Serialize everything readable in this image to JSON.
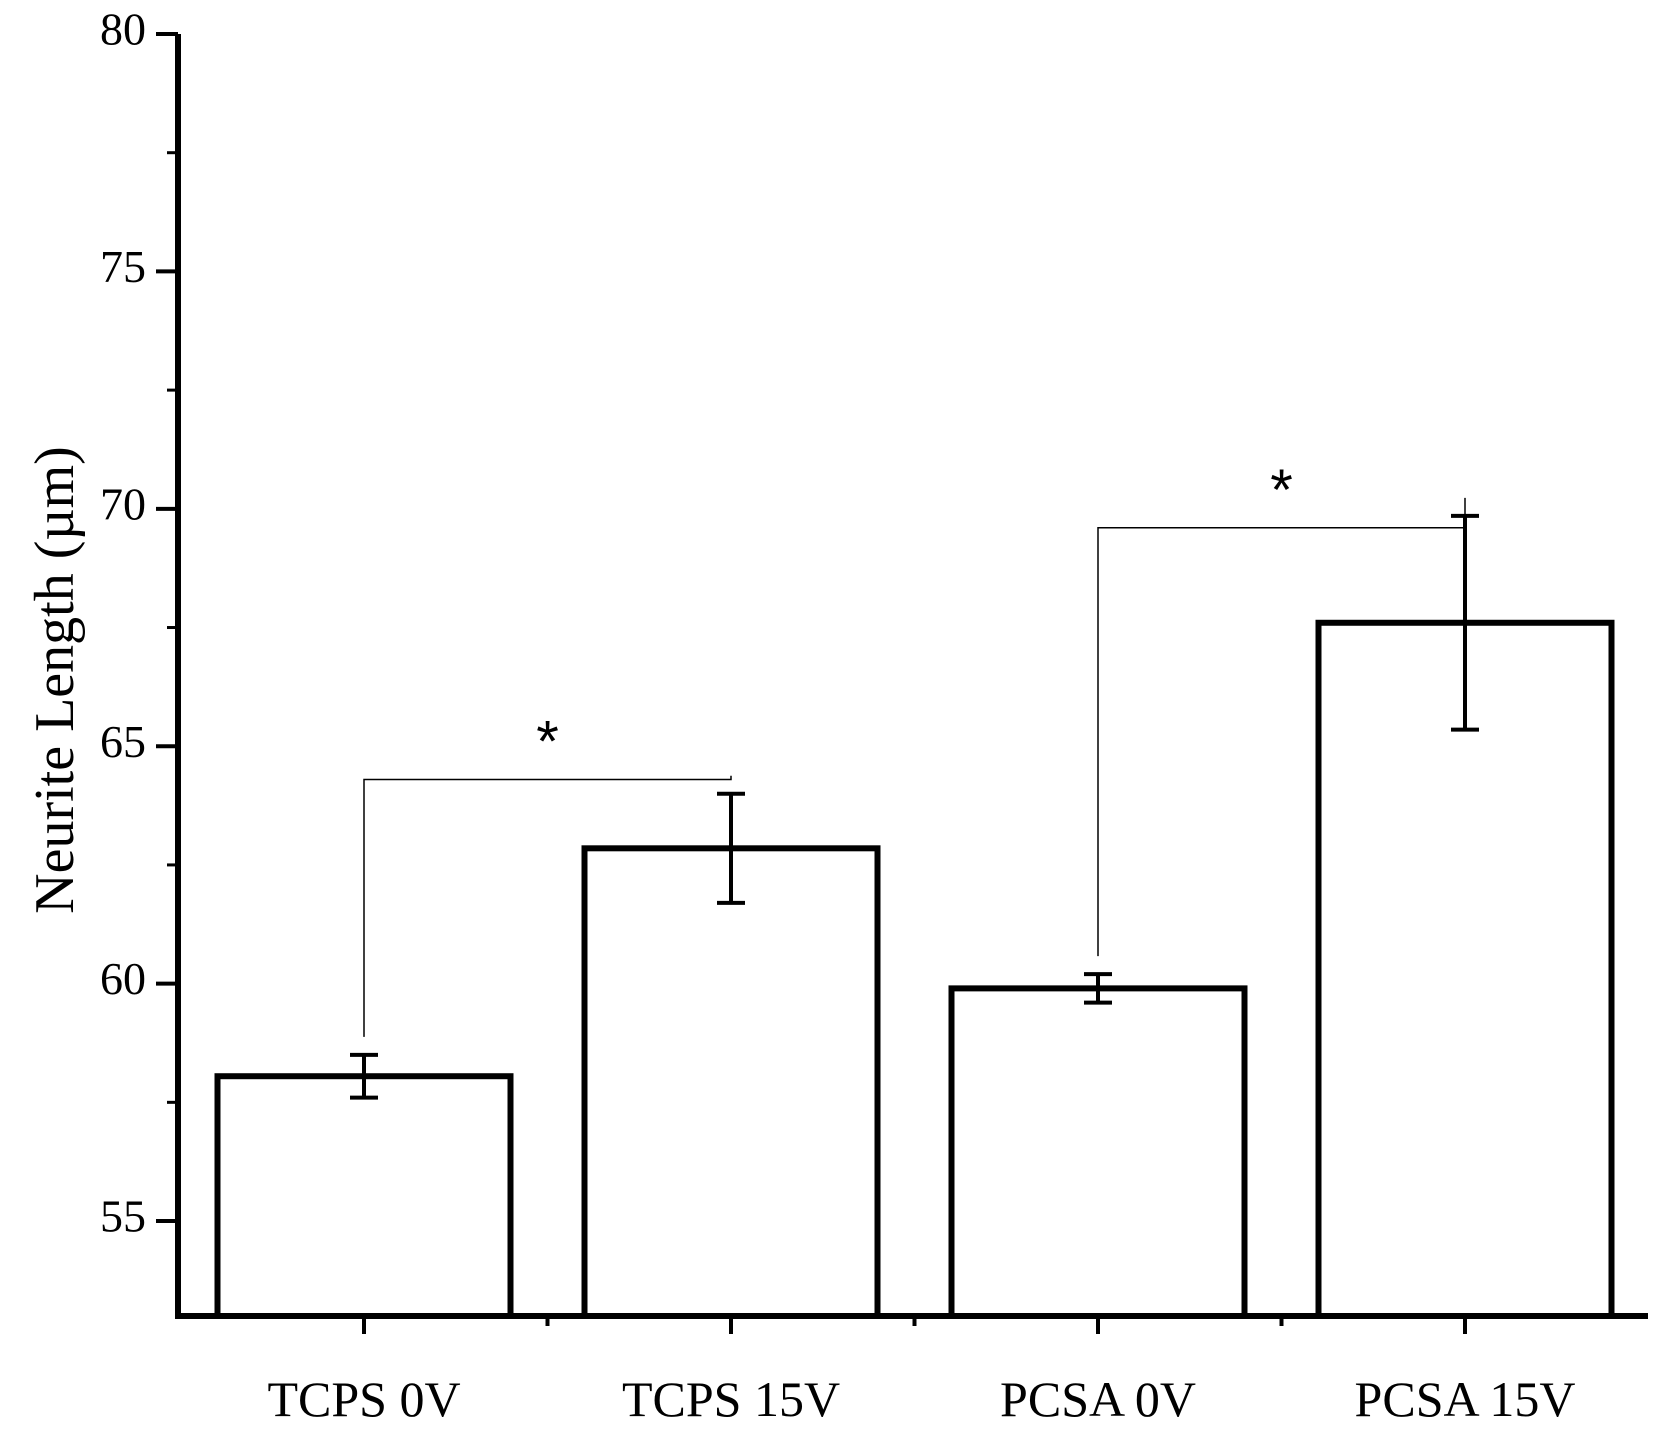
{
  "chart_data": {
    "type": "bar",
    "title": "",
    "xlabel": "",
    "ylabel": "Neurite Length (µm)",
    "ylim": [
      53,
      80
    ],
    "yticks": [
      55,
      60,
      65,
      70,
      75,
      80
    ],
    "ytick_labels": [
      "55",
      "60",
      "65",
      "70",
      "75",
      "80"
    ],
    "categories": [
      "TCPS 0V",
      "TCPS 15V",
      "PCSA 0V",
      "PCSA 15V"
    ],
    "values": [
      58.05,
      62.85,
      59.9,
      67.6
    ],
    "errors": [
      0.45,
      1.15,
      0.3,
      2.25
    ],
    "bar_fill": "#ffffff",
    "bar_edge": "#000000",
    "grid": false,
    "annotations": [
      {
        "type": "significance",
        "from": 0,
        "to": 1,
        "level": 64.3,
        "label": "*"
      },
      {
        "type": "significance",
        "from": 2,
        "to": 3,
        "level": 69.6,
        "label": "*"
      }
    ]
  }
}
